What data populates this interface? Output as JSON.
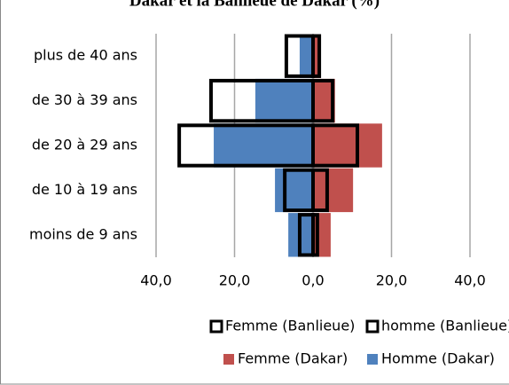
{
  "chart_data": {
    "type": "pyramid",
    "title": "Dakar et la Banlieue de Dakar (%)",
    "categories": [
      "moins de 9 ans",
      "de 10 à 19 ans",
      "de 20 à 29 ans",
      "de 30 à 39 ans",
      "plus de 40 ans"
    ],
    "series": [
      {
        "name": "Femme (Banlieue)",
        "color": "#000000",
        "outline": true,
        "values": [
          1.1,
          3.6,
          11.3,
          5.0,
          1.6
        ]
      },
      {
        "name": "homme (Banlieue)",
        "color": "#000000",
        "outline": true,
        "values": [
          -3.4,
          -7.2,
          -34.1,
          -26.0,
          -6.8
        ]
      },
      {
        "name": "Femme (Dakar)",
        "color": "#c0504d",
        "outline": false,
        "values": [
          4.5,
          10.2,
          17.6,
          5.6,
          2.0
        ]
      },
      {
        "name": "Homme (Dakar)",
        "color": "#4f81bd",
        "outline": false,
        "values": [
          -6.3,
          -9.7,
          -25.3,
          -14.7,
          -3.4
        ]
      }
    ],
    "xlim": [
      -40,
      40
    ],
    "xticks": [
      {
        "value": -40,
        "label": "40,0"
      },
      {
        "value": -20,
        "label": "20,0"
      },
      {
        "value": 0,
        "label": "0,0"
      },
      {
        "value": 20,
        "label": "20,0"
      },
      {
        "value": 40,
        "label": "40,0"
      }
    ],
    "grid": true,
    "legend": "bottom"
  }
}
